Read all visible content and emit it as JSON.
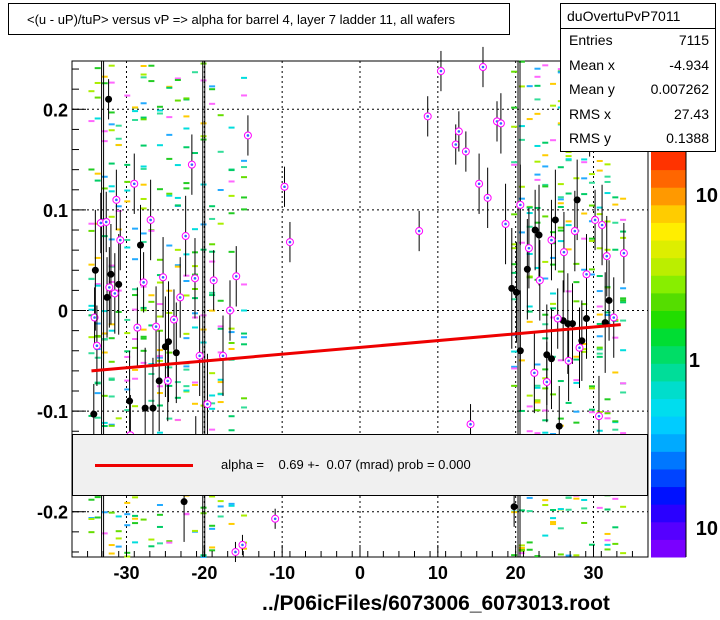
{
  "title": "<(u - uP)/tuP> versus   vP => alpha for barrel 4, layer 7 ladder 11, all wafers",
  "stats": {
    "name": "duOvertuPvP7011",
    "rows": [
      {
        "key": "Entries",
        "value": "7115"
      },
      {
        "key": "Mean x",
        "value": "-4.934"
      },
      {
        "key": "Mean y",
        "value": "0.007262"
      },
      {
        "key": "RMS x",
        "value": "27.43"
      },
      {
        "key": "RMS y",
        "value": "0.1388"
      }
    ]
  },
  "legend": {
    "fit_text": "alpha =    0.69 +-  0.07 (mrad) prob = 0.000",
    "line_color": "#ee0000"
  },
  "x_axis_title": "../P06icFiles/6073006_6073013.root",
  "colorbar_labels": [
    "10",
    "1",
    "10"
  ],
  "chart_data": {
    "type": "scatter",
    "title": "<(u - uP)/tuP> versus   vP => alpha for barrel 4, layer 7 ladder 11, all wafers",
    "xlim": [
      -37,
      37
    ],
    "ylim": [
      -0.245,
      0.248
    ],
    "xticks": [
      -30,
      -20,
      -10,
      0,
      10,
      20,
      30
    ],
    "xtick_labels": [
      "-30",
      "-20",
      "-10",
      "0",
      "10",
      "20",
      "30"
    ],
    "yticks": [
      -0.2,
      -0.1,
      0,
      0.1,
      0.2
    ],
    "ytick_labels": [
      "-0.2",
      "-0.1",
      "0",
      "0.1",
      "0.2"
    ],
    "grid": true,
    "fit_line": {
      "color": "#ee0000",
      "points": [
        [
          -34.5,
          -0.06
        ],
        [
          33.5,
          -0.014
        ]
      ]
    },
    "profile_black": [
      [
        -34.2,
        -0.103,
        0.03
      ],
      [
        -34,
        0.04,
        0.06
      ],
      [
        -32.5,
        0.013,
        0.04
      ],
      [
        -32.3,
        0.21,
        0.02
      ],
      [
        -32.0,
        0.036,
        0.05
      ],
      [
        -31.0,
        0.026,
        0.05
      ],
      [
        -29.6,
        -0.09,
        0.05
      ],
      [
        -28.2,
        0.065,
        0.04
      ],
      [
        -27.6,
        -0.097,
        0.06
      ],
      [
        -26.6,
        -0.097,
        0.05
      ],
      [
        -25.8,
        -0.07,
        0.05
      ],
      [
        -25.0,
        -0.036,
        0.05
      ],
      [
        -24.6,
        -0.031,
        0.06
      ],
      [
        -23.6,
        -0.042,
        0.05
      ],
      [
        -22.6,
        -0.19,
        0.04
      ],
      [
        19.5,
        0.022,
        0.06
      ],
      [
        20.1,
        0.018,
        0.05
      ],
      [
        20.6,
        -0.04,
        0.06
      ],
      [
        21.5,
        0.041,
        0.05
      ],
      [
        22.5,
        0.08,
        0.04
      ],
      [
        23.0,
        0.075,
        0.05
      ],
      [
        24.0,
        -0.044,
        0.05
      ],
      [
        24.6,
        -0.048,
        0.05
      ],
      [
        25.1,
        0.09,
        0.05
      ],
      [
        25.6,
        -0.115,
        0.04
      ],
      [
        26.1,
        -0.01,
        0.04
      ],
      [
        26.7,
        -0.013,
        0.05
      ],
      [
        27.3,
        -0.013,
        0.04
      ],
      [
        27.9,
        0.11,
        0.04
      ],
      [
        28.5,
        -0.03,
        0.04
      ],
      [
        29.1,
        -0.008,
        0.04
      ],
      [
        30.0,
        0.2,
        0.03
      ],
      [
        31.5,
        -0.012,
        0.05
      ],
      [
        32.0,
        0.01,
        0.04
      ],
      [
        33.3,
        0.183,
        0.02
      ],
      [
        19.8,
        -0.195,
        0.02
      ]
    ],
    "profile_open": [
      [
        -34.1,
        -0.007,
        0.03
      ],
      [
        -33.8,
        -0.035,
        0.04
      ],
      [
        -33.3,
        0.087,
        0.03
      ],
      [
        -32.6,
        0.088,
        0.03
      ],
      [
        -32.2,
        0.023,
        0.04
      ],
      [
        -31.5,
        0.017,
        0.04
      ],
      [
        -30.8,
        0.07,
        0.03
      ],
      [
        -29.5,
        -0.124,
        0.04
      ],
      [
        -29.0,
        0.126,
        0.03
      ],
      [
        -28.6,
        -0.017,
        0.04
      ],
      [
        -27.8,
        0.028,
        0.03
      ],
      [
        -26.9,
        0.09,
        0.04
      ],
      [
        -26.2,
        -0.016,
        0.04
      ],
      [
        -25.3,
        0.033,
        0.04
      ],
      [
        -24.7,
        -0.07,
        0.04
      ],
      [
        -23.9,
        -0.009,
        0.03
      ],
      [
        -23.1,
        0.013,
        0.04
      ],
      [
        -22.4,
        0.074,
        0.04
      ],
      [
        -21.6,
        0.145,
        0.03
      ],
      [
        -21.2,
        0.032,
        0.04
      ],
      [
        -19.6,
        -0.093,
        0.05
      ],
      [
        -18.8,
        0.03,
        0.03
      ],
      [
        -17.6,
        -0.045,
        0.04
      ],
      [
        -16.7,
        0.0,
        0.03
      ],
      [
        -15.9,
        0.034,
        0.03
      ],
      [
        -14.4,
        0.174,
        0.02
      ],
      [
        -9.7,
        0.123,
        0.02
      ],
      [
        -9.0,
        0.068,
        0.02
      ],
      [
        7.6,
        0.079,
        0.02
      ],
      [
        8.7,
        0.193,
        0.02
      ],
      [
        10.4,
        0.238,
        0.02
      ],
      [
        12.3,
        0.165,
        0.02
      ],
      [
        12.7,
        0.178,
        0.02
      ],
      [
        13.6,
        0.158,
        0.02
      ],
      [
        14.2,
        -0.113,
        0.02
      ],
      [
        15.3,
        0.126,
        0.03
      ],
      [
        15.8,
        0.242,
        0.02
      ],
      [
        16.4,
        0.112,
        0.03
      ],
      [
        17.6,
        0.188,
        0.02
      ],
      [
        18.1,
        0.186,
        0.03
      ],
      [
        18.7,
        0.086,
        0.04
      ],
      [
        20.6,
        0.105,
        0.04
      ],
      [
        21.7,
        0.062,
        0.04
      ],
      [
        22.4,
        -0.062,
        0.04
      ],
      [
        23.1,
        0.03,
        0.04
      ],
      [
        24.0,
        -0.071,
        0.04
      ],
      [
        24.6,
        0.07,
        0.04
      ],
      [
        25.4,
        -0.008,
        0.03
      ],
      [
        26.2,
        0.058,
        0.04
      ],
      [
        26.8,
        -0.05,
        0.04
      ],
      [
        27.6,
        0.079,
        0.04
      ],
      [
        28.2,
        -0.037,
        0.04
      ],
      [
        29.1,
        0.036,
        0.04
      ],
      [
        29.5,
        0.183,
        0.03
      ],
      [
        30.2,
        0.09,
        0.03
      ],
      [
        30.7,
        -0.105,
        0.04
      ],
      [
        31.1,
        0.085,
        0.04
      ],
      [
        31.7,
        0.054,
        0.04
      ],
      [
        32.6,
        -0.007,
        0.04
      ],
      [
        33.9,
        0.057,
        0.03
      ],
      [
        -20.6,
        -0.045,
        0.04
      ],
      [
        -21.1,
        -0.135,
        0.03
      ],
      [
        -16.0,
        -0.24,
        0.01
      ],
      [
        -15.1,
        -0.233,
        0.01
      ],
      [
        -10.9,
        -0.207,
        0.01
      ],
      [
        -31.3,
        0.11,
        0.03
      ]
    ],
    "vertical_lines_x": [
      -33.2,
      -20.2,
      20.3
    ],
    "histogram_bins_x": [
      -34.5,
      -33.7,
      -32.8,
      -31.9,
      -31.0,
      -29.9,
      -28.9,
      -27.8,
      -26.8,
      -25.7,
      -24.5,
      -23.4,
      -22.3,
      -21.2,
      -20.1,
      -19.0,
      -17.9,
      -16.5,
      -14.9,
      19.8,
      20.8,
      21.8,
      22.8,
      23.8,
      24.8,
      25.8,
      26.8,
      27.8,
      28.8,
      29.8,
      30.8,
      31.8,
      32.8,
      33.8
    ]
  }
}
